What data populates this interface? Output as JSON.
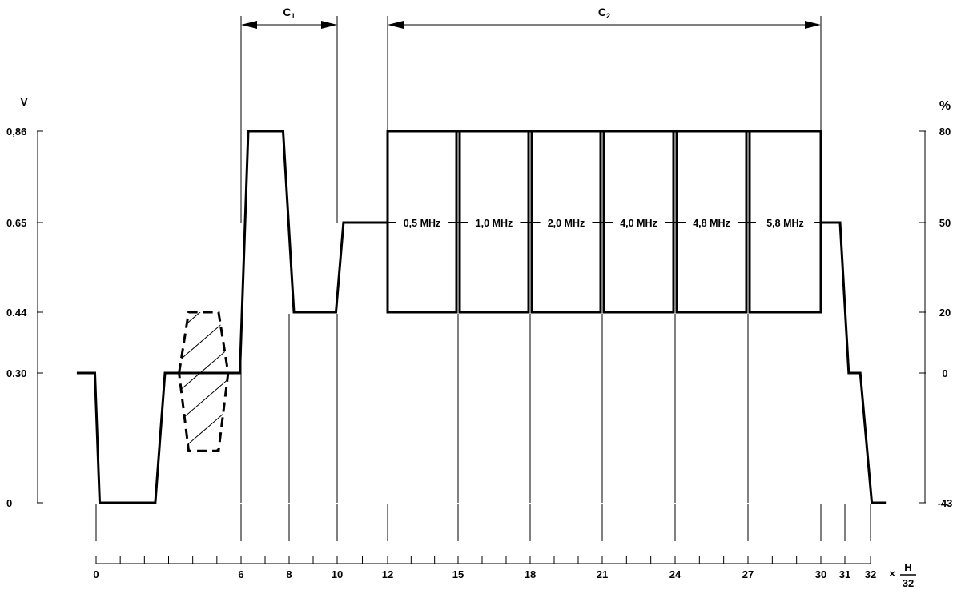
{
  "left_axis": {
    "unit": "V",
    "ticks": [
      {
        "label": "0,86",
        "v": 0.86
      },
      {
        "label": "0.65",
        "v": 0.65
      },
      {
        "label": "0.44",
        "v": 0.44
      },
      {
        "label": "0.30",
        "v": 0.3
      },
      {
        "label": "0",
        "v": 0
      }
    ]
  },
  "right_axis": {
    "unit": "%",
    "ticks": [
      {
        "label": "80",
        "v": 0.86
      },
      {
        "label": "50",
        "v": 0.65
      },
      {
        "label": "20",
        "v": 0.44
      },
      {
        "label": "0",
        "v": 0.3
      },
      {
        "label": "-43",
        "v": 0
      }
    ]
  },
  "time_axis": {
    "unit_prefix": "×",
    "unit_numerator": "H",
    "unit_denominator": "32",
    "labels": [
      0,
      6,
      8,
      10,
      12,
      15,
      18,
      21,
      24,
      27,
      30,
      31,
      32
    ],
    "divisions": 32
  },
  "regions": [
    {
      "label": "C",
      "subscript": "1",
      "from": 6,
      "to": 10
    },
    {
      "label": "C",
      "subscript": "2",
      "from": 12,
      "to": 30
    }
  ],
  "waveform": [
    [
      -0.8,
      0.3
    ],
    [
      -0.05,
      0.3
    ],
    [
      0.15,
      0.0
    ],
    [
      2.45,
      0.0
    ],
    [
      2.85,
      0.3
    ],
    [
      3.5,
      0.3
    ],
    [
      5.4,
      0.3
    ],
    [
      5.95,
      0.3
    ],
    [
      6.3,
      0.86
    ],
    [
      7.75,
      0.86
    ],
    [
      8.2,
      0.44
    ],
    [
      9.95,
      0.44
    ],
    [
      10.25,
      0.65
    ],
    [
      12.0,
      0.65
    ],
    [
      12.0,
      0.86
    ],
    [
      30.0,
      0.86
    ],
    [
      30.0,
      0.65
    ],
    [
      30.8,
      0.65
    ],
    [
      31.15,
      0.3
    ],
    [
      31.6,
      0.3
    ],
    [
      32.05,
      0.0
    ],
    [
      32.6,
      0.0
    ]
  ],
  "sync_pulse_marker": {
    "from": 3.5,
    "to": 5.4,
    "high": 0.44,
    "low": 0.12
  },
  "packets": [
    {
      "label": "0,5 MHz",
      "from": 12,
      "to": 15,
      "high": 0.86,
      "low": 0.44
    },
    {
      "label": "1,0 MHz",
      "from": 15,
      "to": 18,
      "high": 0.86,
      "low": 0.44
    },
    {
      "label": "2,0 MHz",
      "from": 18,
      "to": 21,
      "high": 0.86,
      "low": 0.44
    },
    {
      "label": "4,0 MHz",
      "from": 21,
      "to": 24,
      "high": 0.86,
      "low": 0.44
    },
    {
      "label": "4,8 MHz",
      "from": 24,
      "to": 27,
      "high": 0.86,
      "low": 0.44
    },
    {
      "label": "5,8  MHz",
      "from": 27,
      "to": 30,
      "high": 0.86,
      "low": 0.44
    }
  ],
  "pedestal_level": 0.65
}
